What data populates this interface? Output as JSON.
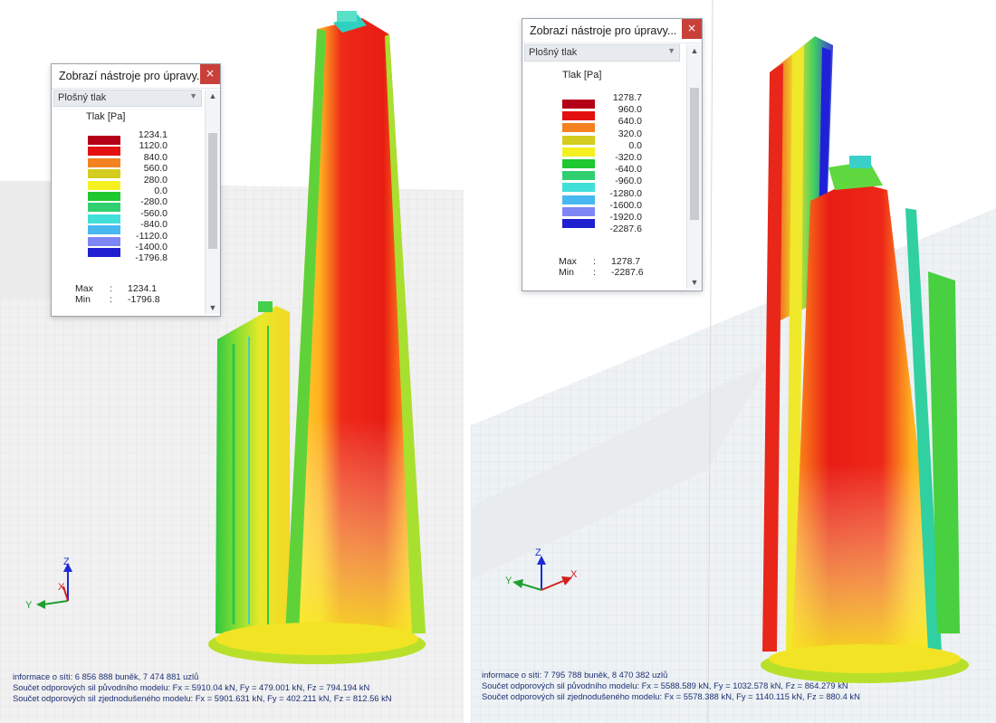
{
  "left_view": {
    "panel": {
      "title": "Zobrazí nástroje pro úpravy...",
      "close_icon": "close-icon",
      "result_type": "Plošný tlak",
      "unit_label": "Tlak [Pa]",
      "legend": [
        {
          "value": "1234.1",
          "color": "#b40016"
        },
        {
          "value": "1120.0",
          "color": "#e21010"
        },
        {
          "value": "840.0",
          "color": "#f58220"
        },
        {
          "value": "560.0",
          "color": "#d4cc1e"
        },
        {
          "value": "280.0",
          "color": "#f5f020"
        },
        {
          "value": "0.0",
          "color": "#20c830"
        },
        {
          "value": "-280.0",
          "color": "#30d070"
        },
        {
          "value": "-560.0",
          "color": "#40e0d8"
        },
        {
          "value": "-840.0",
          "color": "#48b8f0"
        },
        {
          "value": "-1120.0",
          "color": "#7e86f4"
        },
        {
          "value": "-1400.0",
          "color": "#2020d0"
        },
        {
          "value": "-1796.8",
          "color": ""
        }
      ],
      "max_label": "Max",
      "max_value": "1234.1",
      "min_label": "Min",
      "min_value": "-1796.8"
    },
    "info": {
      "line1": "informace o síti: 6 856 888 buněk, 7 474 881 uzlů",
      "line2": "Součet odporových sil původního modelu: Fx = 5910.04 kN, Fy = 479.001 kN, Fz = 794.194 kN",
      "line3": "Součet odporových sil zjednodušeného modelu: Fx = 5901.631 kN, Fy = 402.211 kN, Fz = 812.56 kN"
    },
    "axes": {
      "z": "Z",
      "y": "Y",
      "x": "X"
    }
  },
  "right_view": {
    "panel": {
      "title": "Zobrazí nástroje pro úpravy...",
      "close_icon": "close-icon",
      "result_type": "Plošný tlak",
      "unit_label": "Tlak [Pa]",
      "legend": [
        {
          "value": "1278.7",
          "color": "#b40016"
        },
        {
          "value": "960.0",
          "color": "#e21010"
        },
        {
          "value": "640.0",
          "color": "#f58220"
        },
        {
          "value": "320.0",
          "color": "#d4cc1e"
        },
        {
          "value": "0.0",
          "color": "#f5f020"
        },
        {
          "value": "-320.0",
          "color": "#20c830"
        },
        {
          "value": "-640.0",
          "color": "#30d070"
        },
        {
          "value": "-960.0",
          "color": "#40e0d8"
        },
        {
          "value": "-1280.0",
          "color": "#48b8f0"
        },
        {
          "value": "-1600.0",
          "color": "#7e86f4"
        },
        {
          "value": "-1920.0",
          "color": "#2020d0"
        },
        {
          "value": "-2287.6",
          "color": ""
        }
      ],
      "max_label": "Max",
      "max_value": "1278.7",
      "min_label": "Min",
      "min_value": "-2287.6"
    },
    "info": {
      "line1": "informace o síti: 7 795 788 buněk, 8 470 382 uzlů",
      "line2": "Součet odporových sil původního modelu: Fx = 5588.589 kN, Fy = 1032.578 kN, Fz = 864.279 kN",
      "line3": "Součet odporových sil zjednodušeného modelu: Fx = 5578.388 kN, Fy = 1140.115 kN, Fz = 880.4 kN"
    },
    "axes": {
      "z": "Z",
      "y": "Y",
      "x": "X"
    }
  }
}
